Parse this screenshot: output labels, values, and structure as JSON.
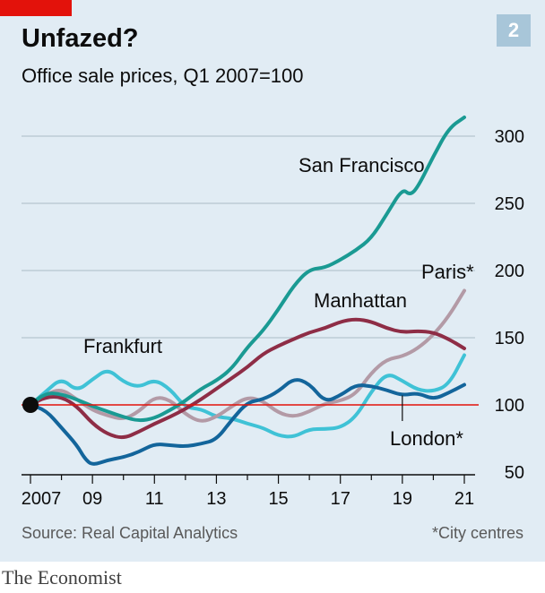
{
  "header": {
    "title": "Unfazed?",
    "subtitle": "Office sale prices, Q1 2007=100",
    "chart_number": "2"
  },
  "footer": {
    "source": "Source: Real Capital Analytics",
    "footnote": "*City centres",
    "brand": "The Economist"
  },
  "colors": {
    "background": "#e1ecf4",
    "san_francisco": "#1a9a93",
    "manhattan": "#8e2d46",
    "paris": "#b39aa6",
    "frankfurt": "#3fc2d6",
    "london": "#13659b",
    "baseline": "#e3120b",
    "accent_tab": "#e3120b"
  },
  "chart_data": {
    "type": "line",
    "title": "Unfazed?",
    "subtitle": "Office sale prices, Q1 2007=100",
    "xlabel": "",
    "ylabel": "",
    "xlim": [
      2006.85,
      2021.5
    ],
    "ylim": [
      50,
      325
    ],
    "x_ticks": [
      2007,
      2009,
      2011,
      2013,
      2015,
      2017,
      2019,
      2021
    ],
    "x_tick_labels": [
      "2007",
      "09",
      "11",
      "13",
      "15",
      "17",
      "19",
      "21"
    ],
    "y_ticks": [
      50,
      100,
      150,
      200,
      250,
      300
    ],
    "y_tick_labels": [
      "50",
      "100",
      "150",
      "200",
      "250",
      "300"
    ],
    "baseline": 100,
    "gridlines": true,
    "legend": "direct labels on lines",
    "series": [
      {
        "name": "San Francisco",
        "label": "San Francisco",
        "color_key": "san_francisco",
        "points": [
          [
            2007,
            100
          ],
          [
            2007.5,
            109
          ],
          [
            2008,
            108
          ],
          [
            2008.5,
            104
          ],
          [
            2009,
            99
          ],
          [
            2009.5,
            95
          ],
          [
            2010,
            91
          ],
          [
            2010.5,
            88
          ],
          [
            2011,
            90
          ],
          [
            2011.5,
            96
          ],
          [
            2012,
            103
          ],
          [
            2012.5,
            112
          ],
          [
            2013,
            118
          ],
          [
            2013.5,
            127
          ],
          [
            2014,
            143
          ],
          [
            2014.5,
            155
          ],
          [
            2015,
            171
          ],
          [
            2015.5,
            189
          ],
          [
            2016,
            201
          ],
          [
            2016.5,
            202
          ],
          [
            2017,
            208
          ],
          [
            2017.5,
            215
          ],
          [
            2018,
            224
          ],
          [
            2018.5,
            242
          ],
          [
            2019,
            261
          ],
          [
            2019.25,
            256
          ],
          [
            2019.5,
            262
          ],
          [
            2020,
            285
          ],
          [
            2020.5,
            306
          ],
          [
            2021,
            314
          ]
        ]
      },
      {
        "name": "Manhattan",
        "label": "Manhattan",
        "color_key": "manhattan",
        "points": [
          [
            2007,
            100
          ],
          [
            2007.5,
            106
          ],
          [
            2008,
            106
          ],
          [
            2008.5,
            99
          ],
          [
            2009,
            86
          ],
          [
            2009.5,
            78
          ],
          [
            2010,
            75
          ],
          [
            2010.5,
            80
          ],
          [
            2011,
            86
          ],
          [
            2011.5,
            91
          ],
          [
            2012,
            97
          ],
          [
            2012.5,
            104
          ],
          [
            2013,
            112
          ],
          [
            2013.5,
            120
          ],
          [
            2014,
            128
          ],
          [
            2014.5,
            138
          ],
          [
            2015,
            144
          ],
          [
            2015.5,
            149
          ],
          [
            2016,
            154
          ],
          [
            2016.5,
            157
          ],
          [
            2017,
            162
          ],
          [
            2017.5,
            164
          ],
          [
            2018,
            162
          ],
          [
            2018.5,
            157
          ],
          [
            2019,
            154
          ],
          [
            2019.5,
            155
          ],
          [
            2020,
            154
          ],
          [
            2020.5,
            149
          ],
          [
            2021,
            142
          ]
        ]
      },
      {
        "name": "Paris",
        "label": "Paris*",
        "color_key": "paris",
        "points": [
          [
            2007,
            100
          ],
          [
            2007.5,
            108
          ],
          [
            2008,
            112
          ],
          [
            2008.5,
            104
          ],
          [
            2009,
            96
          ],
          [
            2009.5,
            92
          ],
          [
            2010,
            89
          ],
          [
            2010.5,
            95
          ],
          [
            2011,
            106
          ],
          [
            2011.5,
            104
          ],
          [
            2012,
            93
          ],
          [
            2012.5,
            87
          ],
          [
            2013,
            91
          ],
          [
            2013.5,
            99
          ],
          [
            2014,
            106
          ],
          [
            2014.5,
            103
          ],
          [
            2015,
            94
          ],
          [
            2015.5,
            91
          ],
          [
            2016,
            95
          ],
          [
            2016.5,
            101
          ],
          [
            2017,
            103
          ],
          [
            2017.5,
            108
          ],
          [
            2018,
            124
          ],
          [
            2018.5,
            134
          ],
          [
            2019,
            136
          ],
          [
            2019.5,
            142
          ],
          [
            2020,
            152
          ],
          [
            2020.5,
            166
          ],
          [
            2021,
            185
          ]
        ]
      },
      {
        "name": "Frankfurt",
        "label": "Frankfurt",
        "color_key": "frankfurt",
        "points": [
          [
            2007,
            100
          ],
          [
            2007.5,
            110
          ],
          [
            2008,
            120
          ],
          [
            2008.5,
            110
          ],
          [
            2009,
            119
          ],
          [
            2009.5,
            127
          ],
          [
            2010,
            117
          ],
          [
            2010.5,
            113
          ],
          [
            2011,
            119
          ],
          [
            2011.5,
            112
          ],
          [
            2012,
            98
          ],
          [
            2012.5,
            97
          ],
          [
            2013,
            91
          ],
          [
            2013.5,
            90
          ],
          [
            2014,
            86
          ],
          [
            2014.5,
            83
          ],
          [
            2015,
            77
          ],
          [
            2015.5,
            76
          ],
          [
            2016,
            82
          ],
          [
            2016.5,
            82
          ],
          [
            2017,
            83
          ],
          [
            2017.5,
            91
          ],
          [
            2018,
            110
          ],
          [
            2018.5,
            124
          ],
          [
            2019,
            118
          ],
          [
            2019.5,
            111
          ],
          [
            2020,
            110
          ],
          [
            2020.5,
            115
          ],
          [
            2021,
            137
          ]
        ]
      },
      {
        "name": "London",
        "label": "London*",
        "color_key": "london",
        "points": [
          [
            2007,
            100
          ],
          [
            2007.5,
            96
          ],
          [
            2008,
            83
          ],
          [
            2008.5,
            70
          ],
          [
            2008.75,
            60
          ],
          [
            2009,
            55
          ],
          [
            2009.5,
            59
          ],
          [
            2010,
            61
          ],
          [
            2010.5,
            65
          ],
          [
            2011,
            71
          ],
          [
            2011.5,
            70
          ],
          [
            2012,
            69
          ],
          [
            2012.5,
            71
          ],
          [
            2013,
            74
          ],
          [
            2013.5,
            89
          ],
          [
            2014,
            102
          ],
          [
            2014.5,
            104
          ],
          [
            2015,
            110
          ],
          [
            2015.5,
            120
          ],
          [
            2016,
            116
          ],
          [
            2016.5,
            102
          ],
          [
            2017,
            107
          ],
          [
            2017.5,
            115
          ],
          [
            2018,
            114
          ],
          [
            2018.5,
            111
          ],
          [
            2019,
            107
          ],
          [
            2019.5,
            109
          ],
          [
            2020,
            104
          ],
          [
            2020.5,
            109
          ],
          [
            2021,
            115
          ]
        ]
      }
    ],
    "annotations": [
      {
        "text": "San Francisco",
        "series": "San Francisco"
      },
      {
        "text": "Manhattan",
        "series": "Manhattan"
      },
      {
        "text": "Paris*",
        "series": "Paris"
      },
      {
        "text": "Frankfurt",
        "series": "Frankfurt"
      },
      {
        "text": "London*",
        "series": "London"
      }
    ]
  }
}
